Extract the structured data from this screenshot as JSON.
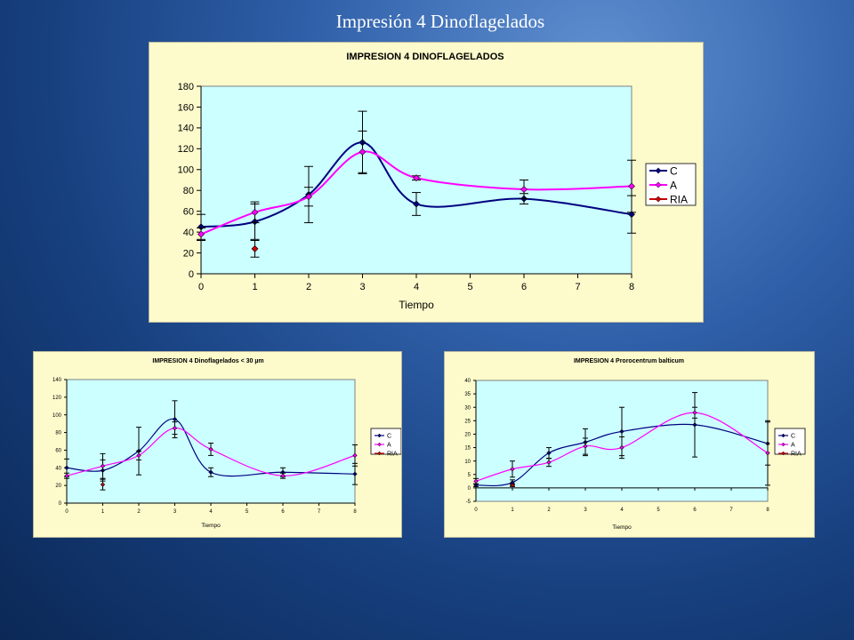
{
  "slide": {
    "title": "Impresión 4 Dinoflagelados"
  },
  "chart_data": [
    {
      "type": "line",
      "title": "IMPRESION 4 DINOFLAGELADOS",
      "xlabel": "Tiempo",
      "ylabel": "",
      "xlim": [
        0,
        8
      ],
      "ylim": [
        0,
        180
      ],
      "xticks": [
        0,
        1,
        2,
        3,
        4,
        5,
        6,
        7,
        8
      ],
      "yticks": [
        0,
        20,
        40,
        60,
        80,
        100,
        120,
        140,
        160,
        180
      ],
      "legend": "right",
      "series": [
        {
          "name": "C",
          "color": "#000080",
          "x": [
            0,
            1,
            2,
            3,
            4,
            6,
            8
          ],
          "y": [
            45,
            50,
            76,
            126,
            67,
            72,
            57
          ],
          "err": [
            12,
            17,
            27,
            30,
            11,
            5,
            18
          ]
        },
        {
          "name": "A",
          "color": "#ff00ff",
          "x": [
            0,
            1,
            2,
            3,
            4,
            6,
            8
          ],
          "y": [
            38,
            59,
            74,
            117,
            92,
            81,
            84
          ],
          "err": [
            6,
            10,
            9,
            20,
            2,
            9,
            25
          ]
        },
        {
          "name": "RIA",
          "color": "#cc0000",
          "x": [
            1
          ],
          "y": [
            24
          ],
          "err": [
            8
          ]
        }
      ]
    },
    {
      "type": "line",
      "title": "IMPRESION 4 Dinoflagelados < 30 µm",
      "xlabel": "Tiempo",
      "ylabel": "",
      "xlim": [
        0,
        8
      ],
      "ylim": [
        0,
        140
      ],
      "xticks": [
        0,
        1,
        2,
        3,
        4,
        5,
        6,
        7,
        8
      ],
      "yticks": [
        0,
        20,
        40,
        60,
        80,
        100,
        120,
        140
      ],
      "legend": "right",
      "series": [
        {
          "name": "C",
          "color": "#000080",
          "x": [
            0,
            1,
            2,
            3,
            4,
            6,
            8
          ],
          "y": [
            40,
            37,
            59,
            95,
            35,
            35,
            33
          ],
          "err": [
            10,
            12,
            27,
            21,
            5,
            5,
            12
          ]
        },
        {
          "name": "A",
          "color": "#ff00ff",
          "x": [
            0,
            1,
            2,
            3,
            4,
            6,
            8
          ],
          "y": [
            31,
            42,
            54,
            85,
            61,
            31,
            54
          ],
          "err": [
            3,
            14,
            5,
            7,
            7,
            3,
            12
          ]
        },
        {
          "name": "RIA",
          "color": "#cc0000",
          "x": [
            1
          ],
          "y": [
            21
          ],
          "err": [
            6
          ]
        }
      ]
    },
    {
      "type": "line",
      "title": "IMPRESION 4 Prorocentrum balticum",
      "xlabel": "Tiempo",
      "ylabel": "",
      "xlim": [
        0,
        8
      ],
      "ylim": [
        -5,
        40
      ],
      "xticks": [
        0,
        1,
        2,
        3,
        4,
        5,
        6,
        7,
        8
      ],
      "yticks": [
        -5,
        0,
        5,
        10,
        15,
        20,
        25,
        30,
        35,
        40
      ],
      "legend": "right",
      "series": [
        {
          "name": "C",
          "color": "#000080",
          "x": [
            0,
            1,
            2,
            3,
            4,
            6,
            8
          ],
          "y": [
            1,
            2,
            13,
            17,
            21,
            23.5,
            16.5
          ],
          "err": [
            0.5,
            1,
            2,
            5,
            9,
            12,
            8
          ]
        },
        {
          "name": "A",
          "color": "#ff00ff",
          "x": [
            0,
            1,
            2,
            3,
            4,
            6,
            8
          ],
          "y": [
            2.5,
            7,
            9.5,
            15.5,
            15,
            28,
            13
          ],
          "err": [
            1,
            3,
            1.5,
            3,
            4,
            2,
            12
          ]
        },
        {
          "name": "RIA",
          "color": "#cc0000",
          "x": [
            1
          ],
          "y": [
            1
          ],
          "err": [
            0.5
          ]
        }
      ]
    }
  ]
}
